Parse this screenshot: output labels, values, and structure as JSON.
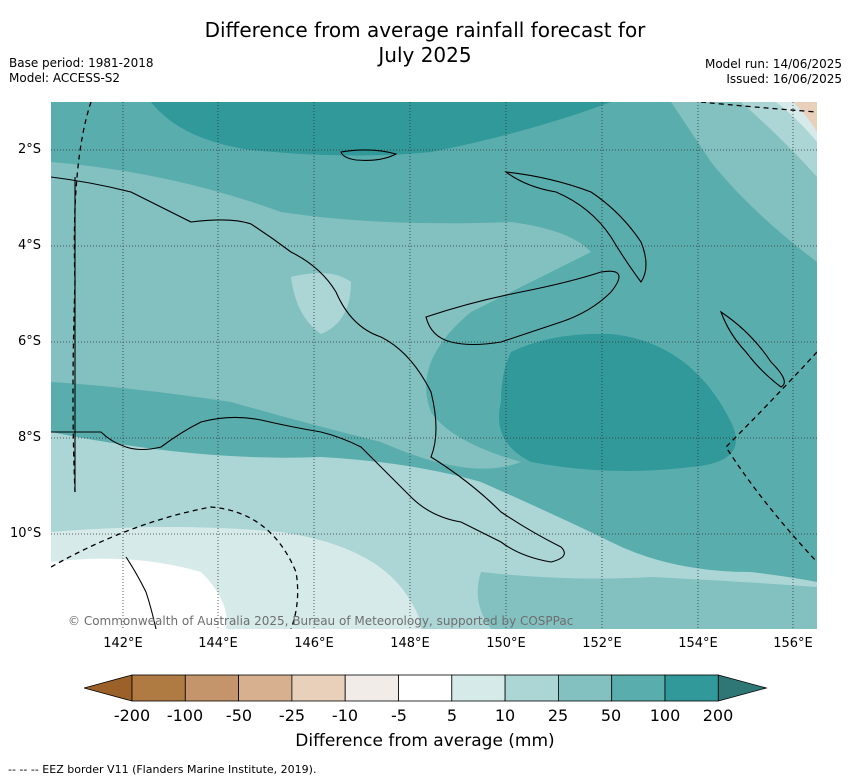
{
  "header": {
    "title_line1": "Difference from average rainfall forecast for",
    "title_line2": "July 2025",
    "base_period": "Base period: 1981-2018",
    "model": "Model: ACCESS-S2",
    "model_run": "Model run: 14/06/2025",
    "issued": "Issued: 16/06/2025"
  },
  "map": {
    "lat_labels": [
      "2°S",
      "4°S",
      "6°S",
      "8°S",
      "10°S"
    ],
    "lon_labels": [
      "142°E",
      "144°E",
      "146°E",
      "148°E",
      "150°E",
      "152°E",
      "154°E",
      "156°E"
    ],
    "copyright": "© Commonwealth of Australia 2025, Bureau of Meteorology, supported by COSPPac"
  },
  "colorbar": {
    "title": "Difference from average (mm)",
    "tick_labels": [
      "-200",
      "-100",
      "-50",
      "-25",
      "-10",
      "-5",
      "5",
      "10",
      "25",
      "50",
      "100",
      "200"
    ],
    "colors": [
      "#9a6128",
      "#b07a43",
      "#c4956a",
      "#d6b08f",
      "#e8d0bb",
      "#f1ece8",
      "#ffffff",
      "#d7eaea",
      "#acd5d5",
      "#83c0c0",
      "#5aadad",
      "#31999a",
      "#2f7777"
    ]
  },
  "footer": {
    "legend_text": "--  --  -- EEZ border V11 (Flanders Marine Institute, 2019)."
  }
}
